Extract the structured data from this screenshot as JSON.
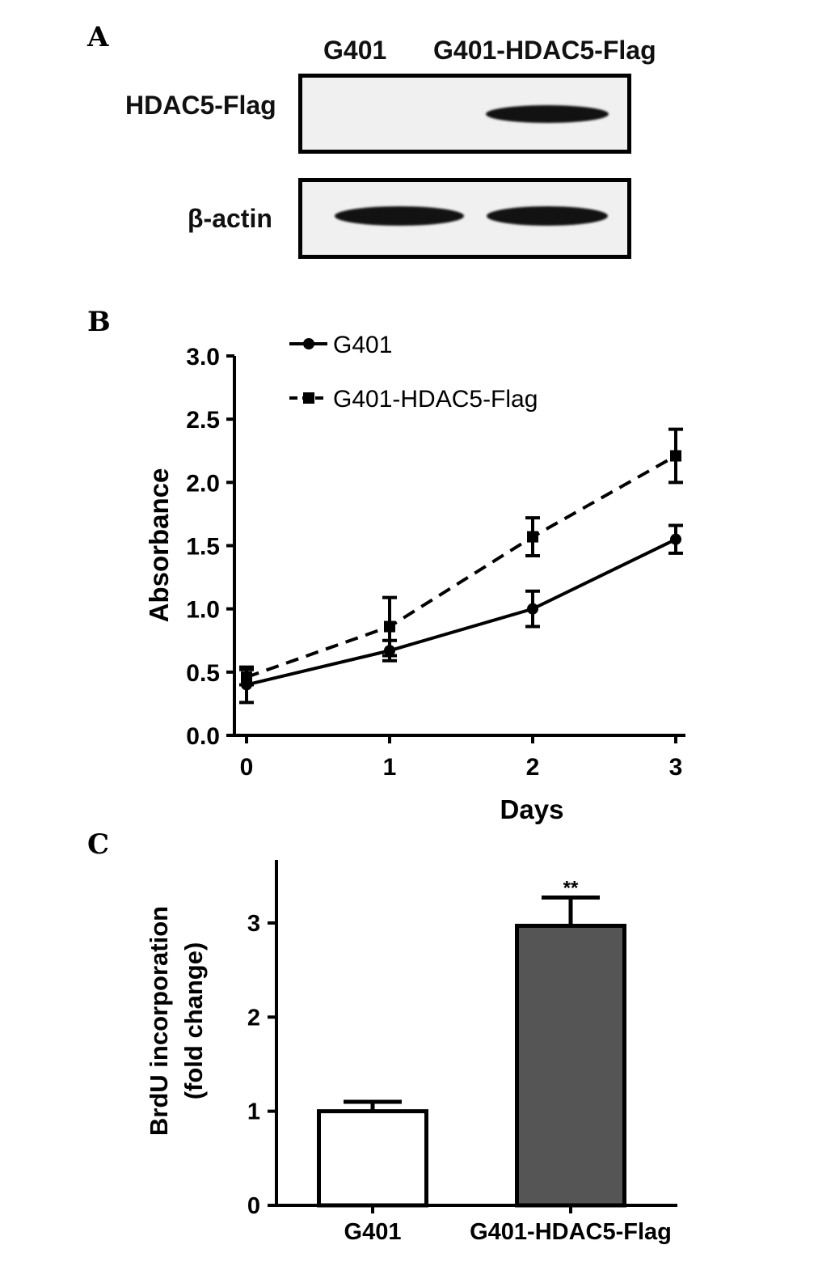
{
  "panels": {
    "a": "A",
    "b": "B",
    "c": "C"
  },
  "blot": {
    "lanes": [
      "G401",
      "G401-HDAC5-Flag"
    ],
    "rows": [
      {
        "label": "HDAC5-Flag",
        "bands": [
          0,
          1
        ]
      },
      {
        "label": "β-actin",
        "bands": [
          1,
          1
        ]
      }
    ]
  },
  "chart_data": [
    {
      "type": "line",
      "xlabel": "Days",
      "ylabel": "Absorbance",
      "x": [
        0,
        1,
        2,
        3
      ],
      "x_ticks": [
        "0",
        "1",
        "2",
        "3"
      ],
      "y_ticks": [
        "0.0",
        "0.5",
        "1.0",
        "1.5",
        "2.0",
        "2.5",
        "3.0"
      ],
      "ylim": [
        0,
        3.0
      ],
      "xlim": [
        0,
        3
      ],
      "legend_position": "top-left",
      "series": [
        {
          "name": "G401",
          "values": [
            0.4,
            0.67,
            1.0,
            1.55
          ],
          "errors": [
            0.14,
            0.08,
            0.14,
            0.11
          ],
          "marker": "circle",
          "line": "solid"
        },
        {
          "name": "G401-HDAC5-Flag",
          "values": [
            0.46,
            0.86,
            1.57,
            2.21
          ],
          "errors": [
            0.06,
            0.23,
            0.15,
            0.21
          ],
          "marker": "square",
          "line": "dashed"
        }
      ]
    },
    {
      "type": "bar",
      "ylabel_line1": "BrdU incorporation",
      "ylabel_line2": "(fold change)",
      "categories": [
        "G401",
        "G401-HDAC5-Flag"
      ],
      "values": [
        1.0,
        2.97
      ],
      "errors": [
        0.1,
        0.3
      ],
      "colors": [
        "#ffffff",
        "#555555"
      ],
      "y_ticks": [
        "0",
        "1",
        "2",
        "3"
      ],
      "ylim": [
        0,
        3.67
      ],
      "significance": [
        "",
        "**"
      ]
    }
  ]
}
